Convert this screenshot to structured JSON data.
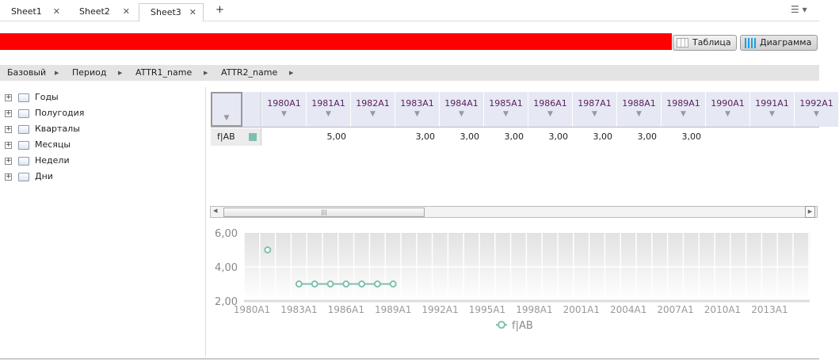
{
  "tabs": [
    {
      "label": "Sheet1"
    },
    {
      "label": "Sheet2"
    },
    {
      "label": "Sheet3",
      "active": true
    }
  ],
  "add_tab": "+",
  "toolbar": {
    "table_label": "Таблица",
    "chart_label": "Диаграмма",
    "banner_color": "#ff0000"
  },
  "breadcrumbs": [
    "Базовый",
    "Период",
    "ATTR1_name",
    "ATTR2_name"
  ],
  "tree": [
    "Годы",
    "Полугодия",
    "Кварталы",
    "Месяцы",
    "Недели",
    "Дни"
  ],
  "table": {
    "columns": [
      "1980A1",
      "1981A1",
      "1982A1",
      "1983A1",
      "1984A1",
      "1985A1",
      "1986A1",
      "1987A1",
      "1988A1",
      "1989A1",
      "1990A1",
      "1991A1",
      "1992A1"
    ],
    "row_label": "f|AB",
    "row_color": "#7fbfb0",
    "values": [
      "",
      "5,00",
      "",
      "3,00",
      "3,00",
      "3,00",
      "3,00",
      "3,00",
      "3,00",
      "3,00",
      "",
      "",
      ""
    ]
  },
  "chart_data": {
    "type": "line",
    "x": [
      1980,
      1981,
      1982,
      1983,
      1984,
      1985,
      1986,
      1987,
      1988,
      1989
    ],
    "series": [
      {
        "name": "f|AB",
        "values": [
          null,
          5,
          null,
          3,
          3,
          3,
          3,
          3,
          3,
          3
        ],
        "color": "#7fbfb0"
      }
    ],
    "x_ticks": [
      "1980A1",
      "1983A1",
      "1986A1",
      "1989A1",
      "1992A1",
      "1995A1",
      "1998A1",
      "2001A1",
      "2004A1",
      "2007A1",
      "2010A1",
      "2013A1"
    ],
    "x_range": [
      1980,
      2015
    ],
    "y_ticks": [
      "2,00",
      "4,00",
      "6,00"
    ],
    "ylim": [
      2,
      6
    ],
    "grid": true,
    "legend": "bottom-center"
  }
}
